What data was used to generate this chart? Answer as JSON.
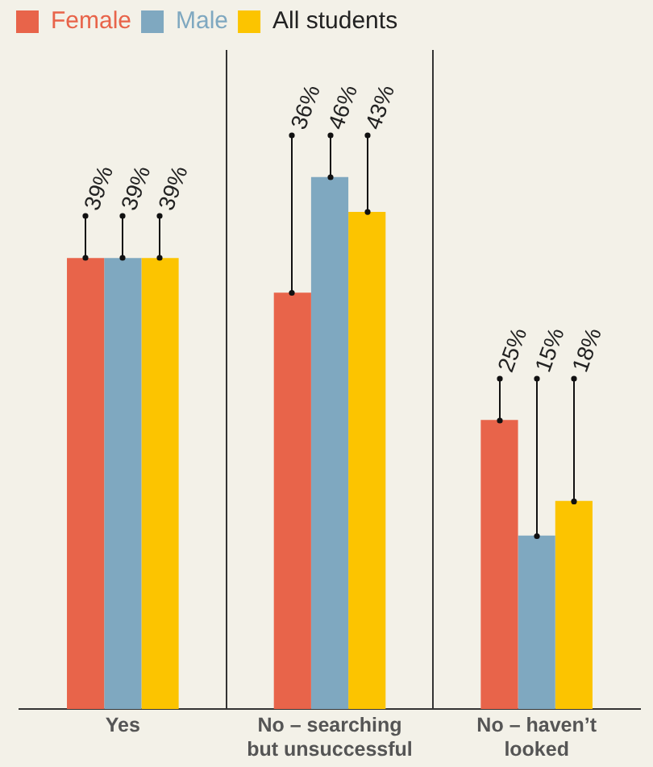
{
  "chart_data": {
    "type": "bar",
    "categories": [
      "Yes",
      "No – searching but unsuccessful",
      "No – haven’t looked"
    ],
    "series": [
      {
        "name": "Female",
        "color": "#e8644a",
        "values": [
          39,
          36,
          25
        ],
        "value_labels": [
          "39%",
          "36%",
          "25%"
        ]
      },
      {
        "name": "Male",
        "color": "#7fa8c0",
        "values": [
          39,
          46,
          15
        ],
        "value_labels": [
          "39%",
          "46%",
          "15%"
        ]
      },
      {
        "name": "All students",
        "color": "#fcc400",
        "values": [
          39,
          43,
          18
        ],
        "value_labels": [
          "39%",
          "43%",
          "18%"
        ]
      }
    ],
    "ylim": [
      0,
      57
    ],
    "tick_labels": "x",
    "grid": "x",
    "legend": "top left"
  }
}
